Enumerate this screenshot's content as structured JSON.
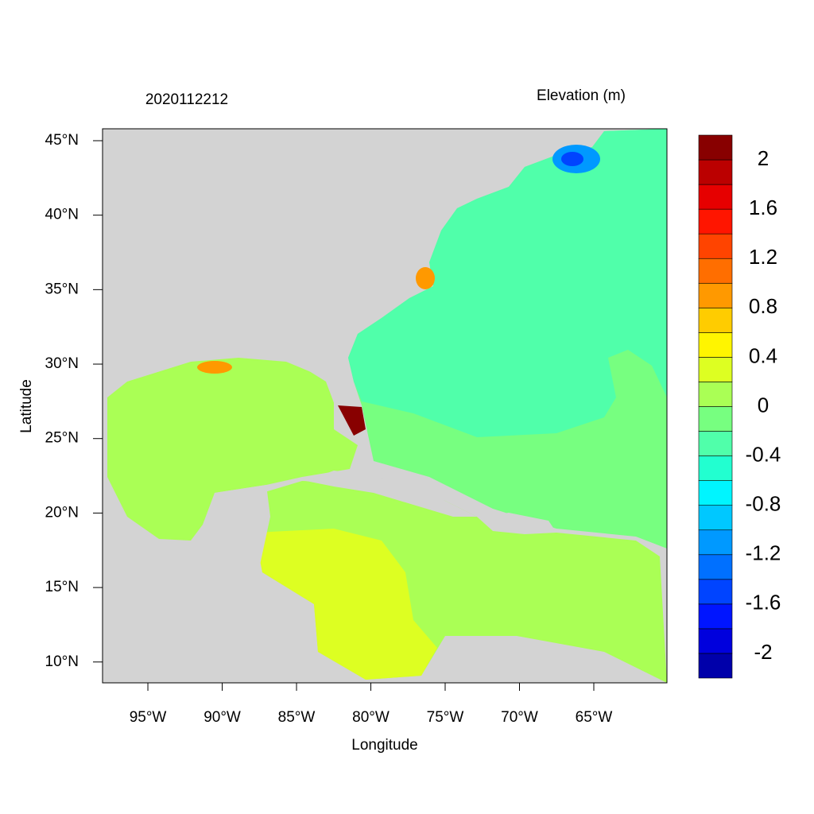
{
  "chart_data": {
    "type": "contour",
    "title": "2020112212",
    "xlabel": "Longitude",
    "ylabel": "Latitude",
    "xlim": [
      -98.05,
      -60.08
    ],
    "ylim": [
      8.6,
      45.8
    ],
    "xticks": [
      {
        "value": -95,
        "label": "95°W"
      },
      {
        "value": -90,
        "label": "90°W"
      },
      {
        "value": -85,
        "label": "85°W"
      },
      {
        "value": -80,
        "label": "80°W"
      },
      {
        "value": -75,
        "label": "75°W"
      },
      {
        "value": -70,
        "label": "70°W"
      },
      {
        "value": -65,
        "label": "65°W"
      }
    ],
    "yticks": [
      {
        "value": 45,
        "label": "45°N"
      },
      {
        "value": 40,
        "label": "40°N"
      },
      {
        "value": 35,
        "label": "35°N"
      },
      {
        "value": 30,
        "label": "30°N"
      },
      {
        "value": 25,
        "label": "25°N"
      },
      {
        "value": 20,
        "label": "20°N"
      },
      {
        "value": 15,
        "label": "15°N"
      },
      {
        "value": 10,
        "label": "10°N"
      }
    ],
    "colorbar": {
      "title": "Elevation (m)",
      "levels": [
        -2.2,
        -2,
        -1.8,
        -1.6,
        -1.4,
        -1.2,
        -1,
        -0.8,
        -0.6,
        -0.4,
        -0.2,
        0,
        0.2,
        0.4,
        0.6,
        0.8,
        1,
        1.2,
        1.4,
        1.6,
        1.8,
        2,
        2.2
      ],
      "colors": [
        "#0000aa",
        "#0000dd",
        "#0015ff",
        "#0044ff",
        "#0070ff",
        "#0099ff",
        "#00c8ff",
        "#00f5ff",
        "#22ffd0",
        "#50ffaa",
        "#77ff80",
        "#aaff55",
        "#ddff22",
        "#fff500",
        "#ffcc00",
        "#ff9900",
        "#ff6e00",
        "#ff4400",
        "#ff1500",
        "#e60000",
        "#bb0000",
        "#880000"
      ],
      "ticks": [
        2,
        1.6,
        1.2,
        0.8,
        0.4,
        0,
        -0.4,
        -0.8,
        -1.2,
        -1.6,
        -2
      ]
    }
  }
}
